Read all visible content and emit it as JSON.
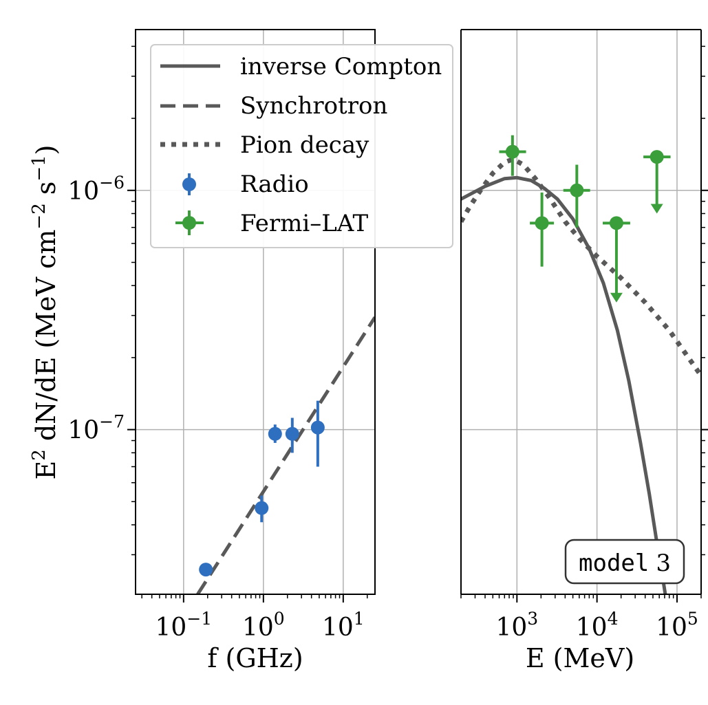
{
  "chart_data": [
    {
      "type": "scatter",
      "panel": "radio",
      "xlabel": "f (GHz)",
      "ylabel_parts": {
        "e": "E",
        "sq": "2",
        "mid": " dN/dE (MeV cm",
        "m2": "−2",
        "s": " s",
        "m1": "−1",
        "close": ")"
      },
      "xscale": "log",
      "yscale": "log",
      "xlim": [
        0.025,
        25
      ],
      "ylim": [
        2.05e-08,
        4.7e-06
      ],
      "xticks": [
        {
          "value": 0.1,
          "base": "10",
          "exp": "−1"
        },
        {
          "value": 1,
          "base": "10",
          "exp": "0"
        },
        {
          "value": 10,
          "base": "10",
          "exp": "1"
        }
      ],
      "yticks": [
        {
          "value": 1e-07,
          "base": "10",
          "exp": "−7"
        },
        {
          "value": 1e-06,
          "base": "10",
          "exp": "−6"
        }
      ],
      "grid": true,
      "series": [
        {
          "name": "Radio",
          "kind": "points",
          "color": "#2f6fc0",
          "points": [
            {
              "x": 0.19,
              "y": 2.6e-08,
              "ylo": 2.6e-08,
              "yhi": 2.6e-08
            },
            {
              "x": 0.95,
              "y": 4.7e-08,
              "ylo": 4.1e-08,
              "yhi": 5.3e-08
            },
            {
              "x": 1.4,
              "y": 9.6e-08,
              "ylo": 8.8e-08,
              "yhi": 1.05e-07
            },
            {
              "x": 2.3,
              "y": 9.6e-08,
              "ylo": 8e-08,
              "yhi": 1.12e-07
            },
            {
              "x": 4.8,
              "y": 1.02e-07,
              "ylo": 7e-08,
              "yhi": 1.32e-07
            }
          ]
        },
        {
          "name": "Synchrotron",
          "kind": "line",
          "style": "dashed",
          "color": "#595959",
          "x": [
            0.15,
            25
          ],
          "y": [
            2.05e-08,
            2.95e-07
          ]
        }
      ]
    },
    {
      "type": "scatter",
      "panel": "gamma",
      "xlabel": "E (MeV)",
      "xscale": "log",
      "yscale": "log",
      "xlim": [
        200,
        200000
      ],
      "ylim": [
        2.05e-08,
        4.7e-06
      ],
      "xticks": [
        {
          "value": 1000,
          "base": "10",
          "exp": "3"
        },
        {
          "value": 10000,
          "base": "10",
          "exp": "4"
        },
        {
          "value": 100000,
          "base": "10",
          "exp": "5"
        }
      ],
      "grid": true,
      "annotation": {
        "label": "model",
        "number": "3"
      },
      "series": [
        {
          "name": "Fermi–LAT",
          "kind": "points",
          "color": "#3a9e3a",
          "points": [
            {
              "x": 880,
              "y": 1.45e-06,
              "ylo": 1.15e-06,
              "yhi": 1.7e-06,
              "xlo": 600,
              "xhi": 1300,
              "ul": false
            },
            {
              "x": 2050,
              "y": 7.3e-07,
              "ylo": 4.8e-07,
              "yhi": 9.8e-07,
              "xlo": 1450,
              "xhi": 2900,
              "ul": false
            },
            {
              "x": 5600,
              "y": 1e-06,
              "ylo": 7e-07,
              "yhi": 1.28e-06,
              "xlo": 3800,
              "xhi": 8200,
              "ul": false
            },
            {
              "x": 17500,
              "y": 7.3e-07,
              "ylo": 3.4e-07,
              "yhi": 7.3e-07,
              "xlo": 11800,
              "xhi": 26000,
              "ul": true
            },
            {
              "x": 56000,
              "y": 1.38e-06,
              "ylo": 8e-07,
              "yhi": 1.38e-06,
              "xlo": 38000,
              "xhi": 83000,
              "ul": true
            }
          ]
        },
        {
          "name": "inverse Compton",
          "kind": "line",
          "style": "solid",
          "color": "#595959",
          "x": [
            200,
            400,
            700,
            1000,
            1500,
            2200,
            3200,
            5000,
            8000,
            12000,
            18000,
            25000,
            35000,
            45000,
            55000,
            65000,
            75000,
            85000
          ],
          "y": [
            9.2e-07,
            1.04e-06,
            1.12e-06,
            1.13e-06,
            1.1e-06,
            1.02e-06,
            9.2e-07,
            7.6e-07,
            5.7e-07,
            4.1e-07,
            2.6e-07,
            1.6e-07,
            8.8e-08,
            5.4e-08,
            3.5e-08,
            2.5e-08,
            1.85e-08,
            1.35e-08
          ]
        },
        {
          "name": "Pion decay",
          "kind": "line",
          "style": "dotted",
          "color": "#595959",
          "x": [
            200,
            260,
            350,
            500,
            700,
            900,
            1200,
            1700,
            2500,
            4000,
            6000,
            10000,
            20000,
            40000,
            80000,
            200000
          ],
          "y": [
            7.4e-07,
            8.6e-07,
            1e-06,
            1.18e-06,
            1.31e-06,
            1.35e-06,
            1.28e-06,
            1.12e-06,
            9.4e-07,
            7.4e-07,
            6.3e-07,
            5.3e-07,
            4.3e-07,
            3.4e-07,
            2.6e-07,
            1.68e-07
          ]
        }
      ]
    }
  ],
  "legend": {
    "placement": "top-left",
    "entries": [
      {
        "label": "inverse Compton",
        "kind": "solid"
      },
      {
        "label": "Synchrotron",
        "kind": "dashed"
      },
      {
        "label": "Pion decay",
        "kind": "dotted"
      },
      {
        "label": "Radio",
        "kind": "radio"
      },
      {
        "label": "Fermi–LAT",
        "kind": "fermi"
      }
    ]
  },
  "colors": {
    "radio": "#2f6fc0",
    "fermi": "#3a9e3a",
    "model": "#595959",
    "grid": "#b0b0b0",
    "axis": "#000000"
  }
}
